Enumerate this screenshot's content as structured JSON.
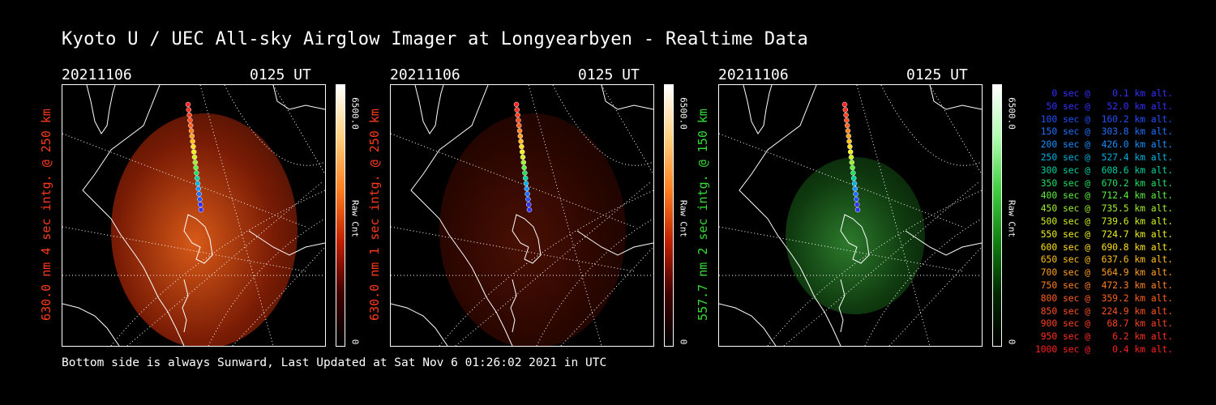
{
  "title": "Kyoto U / UEC All-sky Airglow Imager at Longyearbyen - Realtime Data",
  "footer": "Bottom side is always Sunward, Last Updated at Sat Nov  6 01:26:02 2021 in UTC",
  "panels": [
    {
      "date": "20211106",
      "time": "0125 UT",
      "ylabel": "630.0 nm 4 sec intg. @ 250 km",
      "label_color": "#ff3a1a",
      "cbar_max": "6500.0",
      "cbar_unit": "Raw Cnt",
      "cbar_min": "0",
      "image_tint": "red-bright",
      "cbar_colors": [
        "#ffffff",
        "#ffd080",
        "#ff8020",
        "#c02000",
        "#400000",
        "#000000"
      ]
    },
    {
      "date": "20211106",
      "time": "0125 UT",
      "ylabel": "630.0 nm 1 sec intg. @ 250 km",
      "label_color": "#ff3a1a",
      "cbar_max": "6500.0",
      "cbar_unit": "Raw Cnt",
      "cbar_min": "0",
      "image_tint": "red-dim",
      "cbar_colors": [
        "#ffffff",
        "#ffd080",
        "#ff8020",
        "#c02000",
        "#400000",
        "#000000"
      ]
    },
    {
      "date": "20211106",
      "time": "0125 UT",
      "ylabel": "557.7 nm 2 sec intg. @ 150 km",
      "label_color": "#33dd33",
      "cbar_max": "6500.0",
      "cbar_unit": "Raw Cnt",
      "cbar_min": "0",
      "image_tint": "green",
      "cbar_colors": [
        "#ffffff",
        "#b0ffb0",
        "#40d040",
        "#108010",
        "#002800",
        "#000000"
      ]
    }
  ],
  "legend": [
    {
      "text": "   0 sec @    0.1 km alt.",
      "color": "#3030ff"
    },
    {
      "text": "  50 sec @   52.0 km alt.",
      "color": "#3030ff"
    },
    {
      "text": " 100 sec @  160.2 km alt.",
      "color": "#2050ff"
    },
    {
      "text": " 150 sec @  303.8 km alt.",
      "color": "#2070ff"
    },
    {
      "text": " 200 sec @  426.0 km alt.",
      "color": "#1890ff"
    },
    {
      "text": " 250 sec @  527.4 km alt.",
      "color": "#00b0e0"
    },
    {
      "text": " 300 sec @  608.6 km alt.",
      "color": "#00d0a0"
    },
    {
      "text": " 350 sec @  670.2 km alt.",
      "color": "#20e060"
    },
    {
      "text": " 400 sec @  712.4 km alt.",
      "color": "#60f040"
    },
    {
      "text": " 450 sec @  735.5 km alt.",
      "color": "#a0f030"
    },
    {
      "text": " 500 sec @  739.6 km alt.",
      "color": "#d0f020"
    },
    {
      "text": " 550 sec @  724.7 km alt.",
      "color": "#f0f020"
    },
    {
      "text": " 600 sec @  690.8 km alt.",
      "color": "#ffe020"
    },
    {
      "text": " 650 sec @  637.6 km alt.",
      "color": "#ffc020"
    },
    {
      "text": " 700 sec @  564.9 km alt.",
      "color": "#ffa020"
    },
    {
      "text": " 750 sec @  472.3 km alt.",
      "color": "#ff8020"
    },
    {
      "text": " 800 sec @  359.2 km alt.",
      "color": "#ff6020"
    },
    {
      "text": " 850 sec @  224.9 km alt.",
      "color": "#ff5020"
    },
    {
      "text": " 900 sec @   68.7 km alt.",
      "color": "#ff4020"
    },
    {
      "text": " 950 sec @    6.2 km alt.",
      "color": "#ff3020"
    },
    {
      "text": "1000 sec @    0.4 km alt.",
      "color": "#ff2020"
    }
  ]
}
